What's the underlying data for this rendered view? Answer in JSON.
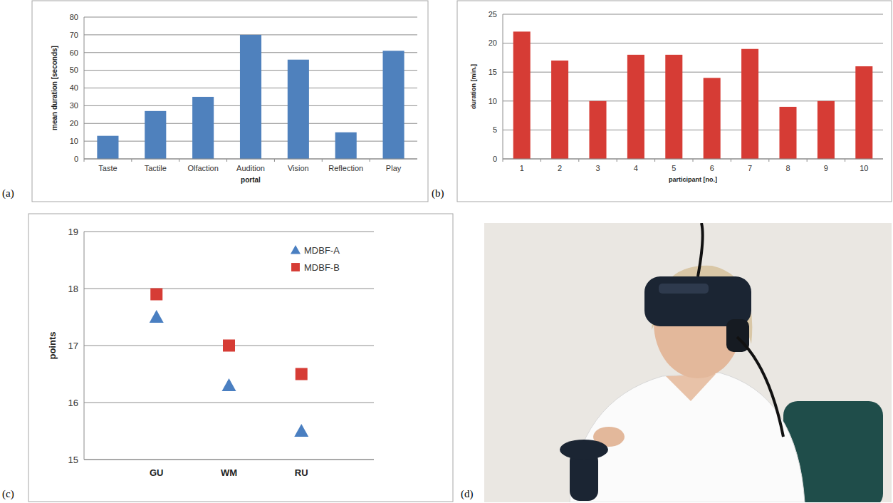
{
  "chart_data": [
    {
      "type": "bar",
      "categories": [
        "Taste",
        "Tactile",
        "Olfaction",
        "Audition",
        "Vision",
        "Reflection",
        "Play"
      ],
      "values": [
        13,
        27,
        35,
        70,
        56,
        15,
        61
      ],
      "color": "#4f81bd",
      "x_label": "portal",
      "y_label": "mean duration [seconds]",
      "ylim": [
        0,
        80
      ],
      "yticks": [
        0,
        10,
        20,
        30,
        40,
        50,
        60,
        70,
        80
      ],
      "grid": true
    },
    {
      "type": "bar",
      "categories": [
        "1",
        "2",
        "3",
        "4",
        "5",
        "6",
        "7",
        "8",
        "9",
        "10"
      ],
      "values": [
        22,
        17,
        10,
        18,
        18,
        14,
        19,
        9,
        10,
        16
      ],
      "color": "#d63c35",
      "x_label": "participant [no.]",
      "y_label": "duration [min.]",
      "ylim": [
        0,
        25
      ],
      "yticks": [
        0,
        5,
        10,
        15,
        20,
        25
      ],
      "grid": true
    },
    {
      "type": "scatter",
      "categories": [
        "GU",
        "WM",
        "RU"
      ],
      "series": [
        {
          "name": "MDBF-A",
          "color": "#4a7fc1",
          "marker": "triangle",
          "values": [
            17.5,
            16.3,
            15.5
          ]
        },
        {
          "name": "MDBF-B",
          "color": "#d63c35",
          "marker": "square",
          "values": [
            17.9,
            17.0,
            16.5
          ]
        }
      ],
      "y_label": "points",
      "ylim": [
        15,
        19
      ],
      "yticks": [
        15,
        16,
        17,
        18,
        19
      ],
      "grid": true,
      "legend": "top-right"
    }
  ],
  "panel_labels": [
    "(a)",
    "(b)",
    "(c)",
    "(d)"
  ]
}
